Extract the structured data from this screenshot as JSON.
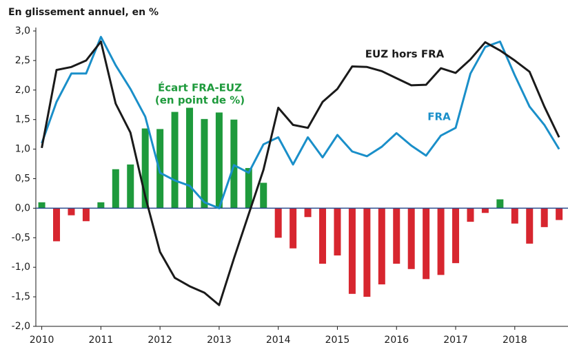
{
  "chart_data": {
    "type": "combo",
    "y_axis_label": "En glissement annuel, en %",
    "x": [
      2010,
      2010.25,
      2010.5,
      2010.75,
      2011,
      2011.25,
      2011.5,
      2011.75,
      2012,
      2012.25,
      2012.5,
      2012.75,
      2013,
      2013.25,
      2013.5,
      2013.75,
      2014,
      2014.25,
      2014.5,
      2014.75,
      2015,
      2015.25,
      2015.5,
      2015.75,
      2016,
      2016.25,
      2016.5,
      2016.75,
      2017,
      2017.25,
      2017.5,
      2017.75,
      2018,
      2018.25,
      2018.5,
      2018.75
    ],
    "xlim": [
      2009.9,
      2018.9
    ],
    "xticks": [
      2010,
      2011,
      2012,
      2013,
      2014,
      2015,
      2016,
      2017,
      2018
    ],
    "ylim": [
      -2,
      3
    ],
    "yticks": [
      {
        "value": 3,
        "label": "3,0"
      },
      {
        "value": 2.5,
        "label": "2,5"
      },
      {
        "value": 2,
        "label": "2,0"
      },
      {
        "value": 1.5,
        "label": "1,5"
      },
      {
        "value": 1,
        "label": "1,0"
      },
      {
        "value": 0.5,
        "label": "0,5"
      },
      {
        "value": 0,
        "label": "0,0"
      },
      {
        "value": -0.5,
        "label": "-0,5"
      },
      {
        "value": -1,
        "label": "-1,0"
      },
      {
        "value": -1.5,
        "label": "-1,5"
      },
      {
        "value": -2,
        "label": "-2,0"
      }
    ],
    "series": [
      {
        "name": "Écart FRA-EUZ",
        "type": "bar",
        "color": "#1e9a3c",
        "negative_color": "#d7262f",
        "values": [
          0.1,
          -0.56,
          -0.12,
          -0.22,
          0.1,
          0.66,
          0.74,
          1.35,
          1.34,
          1.63,
          1.7,
          1.51,
          1.62,
          1.5,
          0.68,
          0.43,
          -0.5,
          -0.68,
          -0.15,
          -0.94,
          -0.8,
          -1.45,
          -1.5,
          -1.29,
          -0.94,
          -1.03,
          -1.2,
          -1.13,
          -0.93,
          -0.23,
          -0.08,
          0.15,
          -0.26,
          -0.6,
          -0.32,
          -0.2
        ]
      },
      {
        "name": "FRA",
        "type": "line",
        "color": "#1a8fc9",
        "values": [
          1.1,
          1.8,
          2.28,
          2.28,
          2.9,
          2.42,
          2.02,
          1.55,
          0.6,
          0.47,
          0.38,
          0.1,
          0.0,
          0.73,
          0.6,
          1.08,
          1.2,
          0.74,
          1.2,
          0.86,
          1.24,
          0.96,
          0.88,
          1.04,
          1.27,
          1.06,
          0.89,
          1.23,
          1.36,
          2.28,
          2.73,
          2.82,
          2.25,
          1.72,
          1.41,
          1.0
        ]
      },
      {
        "name": "EUZ hors FRA",
        "type": "line",
        "color": "#1a1a1a",
        "values": [
          1.02,
          2.34,
          2.39,
          2.5,
          2.82,
          1.77,
          1.28,
          0.2,
          -0.74,
          -1.18,
          -1.32,
          -1.43,
          -1.64,
          -0.85,
          -0.1,
          0.65,
          1.7,
          1.41,
          1.36,
          1.8,
          2.02,
          2.4,
          2.39,
          2.32,
          2.2,
          2.08,
          2.09,
          2.37,
          2.29,
          2.52,
          2.81,
          2.67,
          2.5,
          2.31,
          1.72,
          1.2
        ]
      }
    ],
    "annotations": [
      "(en point de %)"
    ]
  }
}
